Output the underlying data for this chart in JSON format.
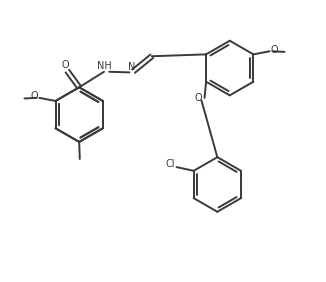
{
  "bg": "#ffffff",
  "lc": "#3a3a3a",
  "lw": 1.4,
  "fs": 7.0,
  "fw": 3.26,
  "fh": 2.82,
  "dpi": 100,
  "xlim": [
    -0.5,
    10.0
  ],
  "ylim": [
    0.0,
    9.0
  ]
}
